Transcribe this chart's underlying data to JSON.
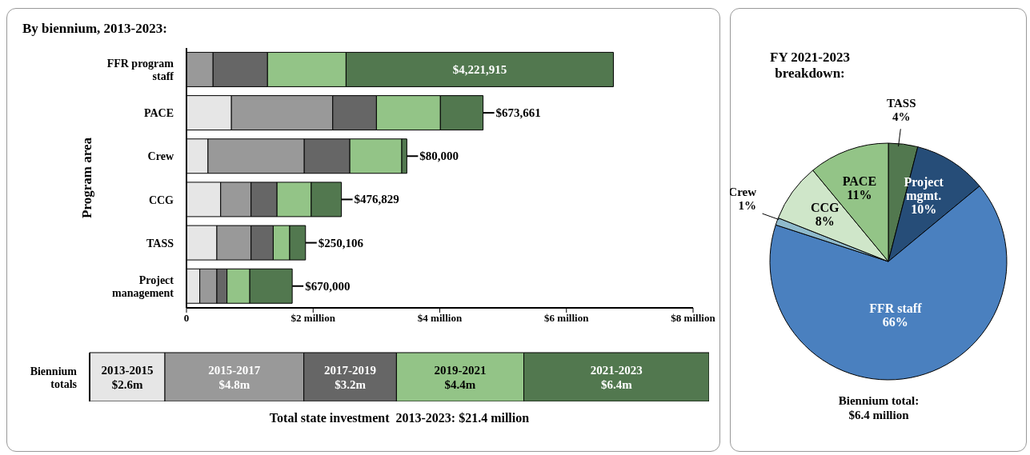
{
  "chart_data": [
    {
      "type": "bar",
      "orientation": "horizontal",
      "stacked": true,
      "title": "By biennium, 2013-2023:",
      "ylabel": "Program area",
      "categories": [
        "FFR program staff",
        "PACE",
        "Crew",
        "CCG",
        "TASS",
        "Project management"
      ],
      "xlim": [
        0,
        8000000
      ],
      "xticks": [
        0,
        {
          "value": 2000000,
          "label": "$2 million"
        },
        {
          "value": 4000000,
          "label": "$4 million"
        },
        {
          "value": 6000000,
          "label": "$6 million"
        },
        {
          "value": 8000000,
          "label": "$8 million"
        }
      ],
      "series": [
        {
          "color": "#e6e6e6",
          "values": [
            0,
            710000,
            340000,
            540000,
            480000,
            210000
          ]
        },
        {
          "color": "#999999",
          "values": [
            420000,
            1600000,
            1520000,
            480000,
            540000,
            270000
          ]
        },
        {
          "color": "#666666",
          "values": [
            860000,
            690000,
            720000,
            410000,
            350000,
            160000
          ]
        },
        {
          "color": "#93c487",
          "values": [
            1240000,
            1010000,
            820000,
            540000,
            260000,
            360000
          ]
        },
        {
          "color": "#52784f",
          "values": [
            4221915,
            673661,
            80000,
            476829,
            250106,
            670000
          ],
          "value_labels": [
            "$4,221,915",
            "$673,661",
            "$80,000",
            "$476,829",
            "$250,106",
            "$670,000"
          ]
        }
      ]
    },
    {
      "type": "bar",
      "orientation": "horizontal",
      "stacked": true,
      "categories": [
        "Biennium totals"
      ],
      "annotations": [
        "Total state investment  2013-2023: $21.4 million"
      ],
      "series": [
        {
          "name": "2013-2015",
          "color": "#e6e6e6",
          "values": [
            2.6
          ],
          "value_labels": [
            "$2.6m"
          ]
        },
        {
          "name": "2015-2017",
          "color": "#999999",
          "values": [
            4.8
          ],
          "value_labels": [
            "$4.8m"
          ]
        },
        {
          "name": "2017-2019",
          "color": "#666666",
          "values": [
            3.2
          ],
          "value_labels": [
            "$3.2m"
          ]
        },
        {
          "name": "2019-2021",
          "color": "#93c487",
          "values": [
            4.4
          ],
          "value_labels": [
            "$4.4m"
          ]
        },
        {
          "name": "2021-2023",
          "color": "#52784f",
          "values": [
            6.4
          ],
          "value_labels": [
            "$6.4m"
          ]
        }
      ]
    },
    {
      "type": "pie",
      "title": "FY 2021-2023 breakdown:",
      "categories": [
        "TASS",
        "Project mgmt.",
        "FFR staff",
        "Crew",
        "CCG",
        "PACE"
      ],
      "values": [
        4,
        10,
        66,
        1,
        8,
        11
      ],
      "colors": [
        "#52784f",
        "#264d78",
        "#4a80bf",
        "#8fbacc",
        "#cfe6c9",
        "#93c487"
      ],
      "value_labels": [
        "4%",
        "10%",
        "66%",
        "1%",
        "8%",
        "11%"
      ],
      "annotations": [
        "Biennium total: $6.4 million"
      ]
    }
  ]
}
